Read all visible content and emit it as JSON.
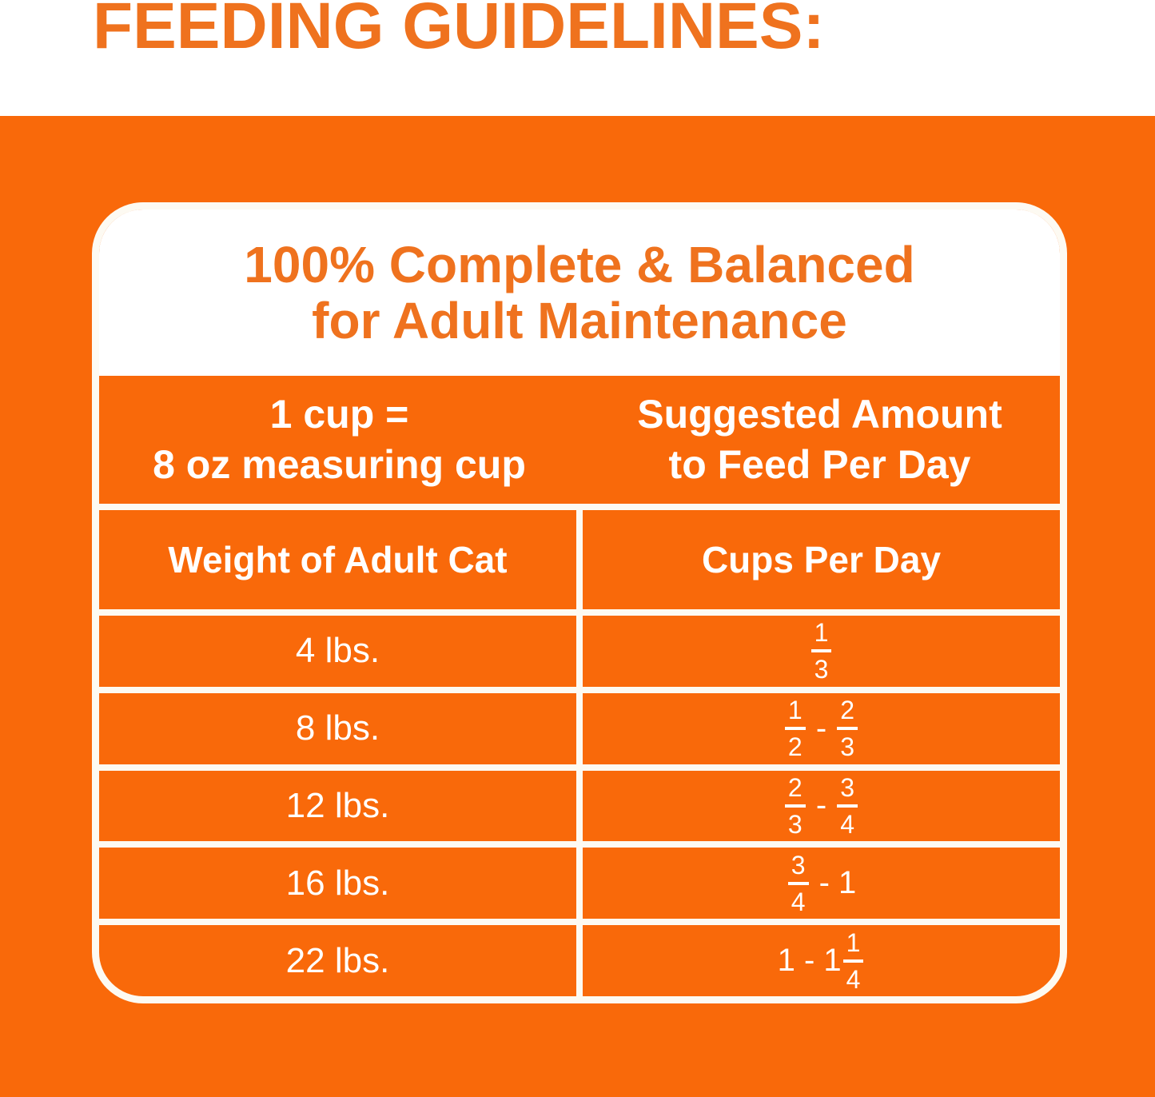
{
  "page_title": "FEEDING GUIDELINES:",
  "colors": {
    "orange_background": "#F9690A",
    "orange_text": "#EF721E",
    "white_line": "#FDFAF2",
    "white_text": "#FFFFFF"
  },
  "panel": {
    "heading_line1": "100% Complete & Balanced",
    "heading_line2": "for Adult Maintenance",
    "header": {
      "left_line1": "1 cup =",
      "left_line2": "8 oz measuring cup",
      "right_line1": "Suggested Amount",
      "right_line2": "to Feed Per Day"
    },
    "columns": {
      "left": "Weight of Adult Cat",
      "right": "Cups Per Day"
    },
    "rows": [
      {
        "weight": "4 lbs.",
        "cups": [
          {
            "frac": [
              "1",
              "3"
            ]
          }
        ]
      },
      {
        "weight": "8 lbs.",
        "cups": [
          {
            "frac": [
              "1",
              "2"
            ]
          },
          {
            "text": " - "
          },
          {
            "frac": [
              "2",
              "3"
            ]
          }
        ]
      },
      {
        "weight": "12 lbs.",
        "cups": [
          {
            "frac": [
              "2",
              "3"
            ]
          },
          {
            "text": " - "
          },
          {
            "frac": [
              "3",
              "4"
            ]
          }
        ]
      },
      {
        "weight": "16 lbs.",
        "cups": [
          {
            "frac": [
              "3",
              "4"
            ]
          },
          {
            "text": " - 1"
          }
        ]
      },
      {
        "weight": "22 lbs.",
        "cups": [
          {
            "text": "1 - 1"
          },
          {
            "frac": [
              "1",
              "4"
            ]
          }
        ]
      }
    ]
  }
}
